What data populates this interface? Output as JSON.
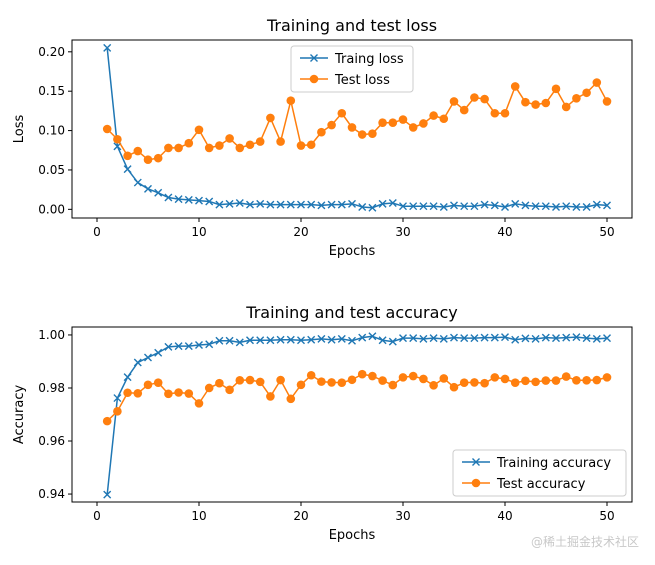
{
  "chart_data": [
    {
      "type": "line",
      "title": "Training and test loss",
      "xlabel": "Epochs",
      "ylabel": "Loss",
      "xlim": [
        -2.45,
        52.45
      ],
      "ylim": [
        -0.011,
        0.215
      ],
      "xticks": [
        "0",
        "10",
        "20",
        "30",
        "40",
        "50"
      ],
      "xtick_values": [
        0,
        10,
        20,
        30,
        40,
        50
      ],
      "yticks": [
        "0.00",
        "0.05",
        "0.10",
        "0.15",
        "0.20"
      ],
      "ytick_values": [
        0,
        0.05,
        0.1,
        0.15,
        0.2
      ],
      "grid": false,
      "legend": "upper-center",
      "x": [
        1,
        2,
        3,
        4,
        5,
        6,
        7,
        8,
        9,
        10,
        11,
        12,
        13,
        14,
        15,
        16,
        17,
        18,
        19,
        20,
        21,
        22,
        23,
        24,
        25,
        26,
        27,
        28,
        29,
        30,
        31,
        32,
        33,
        34,
        35,
        36,
        37,
        38,
        39,
        40,
        41,
        42,
        43,
        44,
        45,
        46,
        47,
        48,
        49,
        50
      ],
      "series": [
        {
          "name": "Traing loss",
          "color": "#1f77b4",
          "marker": "x",
          "values": [
            0.205,
            0.08,
            0.051,
            0.034,
            0.026,
            0.021,
            0.015,
            0.013,
            0.012,
            0.011,
            0.01,
            0.006,
            0.007,
            0.008,
            0.006,
            0.007,
            0.006,
            0.006,
            0.006,
            0.006,
            0.006,
            0.005,
            0.006,
            0.006,
            0.007,
            0.003,
            0.002,
            0.007,
            0.008,
            0.004,
            0.004,
            0.004,
            0.004,
            0.003,
            0.005,
            0.004,
            0.004,
            0.006,
            0.005,
            0.003,
            0.007,
            0.005,
            0.004,
            0.004,
            0.003,
            0.004,
            0.003,
            0.003,
            0.006,
            0.005
          ]
        },
        {
          "name": "Test loss",
          "color": "#ff7f0e",
          "marker": "o",
          "values": [
            0.102,
            0.089,
            0.068,
            0.074,
            0.063,
            0.065,
            0.078,
            0.078,
            0.084,
            0.101,
            0.078,
            0.081,
            0.09,
            0.078,
            0.082,
            0.086,
            0.116,
            0.086,
            0.138,
            0.081,
            0.082,
            0.098,
            0.107,
            0.122,
            0.104,
            0.095,
            0.096,
            0.11,
            0.11,
            0.114,
            0.104,
            0.109,
            0.119,
            0.115,
            0.137,
            0.126,
            0.142,
            0.14,
            0.122,
            0.122,
            0.156,
            0.136,
            0.133,
            0.135,
            0.153,
            0.13,
            0.141,
            0.148,
            0.161,
            0.137
          ]
        }
      ]
    },
    {
      "type": "line",
      "title": "Training and test accuracy",
      "xlabel": "Epochs",
      "ylabel": "Accuracy",
      "xlim": [
        -2.45,
        52.45
      ],
      "ylim": [
        0.937,
        1.003
      ],
      "xticks": [
        "0",
        "10",
        "20",
        "30",
        "40",
        "50"
      ],
      "xtick_values": [
        0,
        10,
        20,
        30,
        40,
        50
      ],
      "yticks": [
        "0.94",
        "0.96",
        "0.98",
        "1.00"
      ],
      "ytick_values": [
        0.94,
        0.96,
        0.98,
        1.0
      ],
      "grid": false,
      "legend": "lower-right",
      "x": [
        1,
        2,
        3,
        4,
        5,
        6,
        7,
        8,
        9,
        10,
        11,
        12,
        13,
        14,
        15,
        16,
        17,
        18,
        19,
        20,
        21,
        22,
        23,
        24,
        25,
        26,
        27,
        28,
        29,
        30,
        31,
        32,
        33,
        34,
        35,
        36,
        37,
        38,
        39,
        40,
        41,
        42,
        43,
        44,
        45,
        46,
        47,
        48,
        49,
        50
      ],
      "series": [
        {
          "name": "Training accuracy",
          "color": "#1f77b4",
          "marker": "x",
          "values": [
            0.9398,
            0.9762,
            0.9841,
            0.9896,
            0.9915,
            0.9933,
            0.9955,
            0.9958,
            0.9958,
            0.9962,
            0.9965,
            0.9978,
            0.9978,
            0.9972,
            0.998,
            0.998,
            0.998,
            0.9982,
            0.9982,
            0.998,
            0.9982,
            0.9985,
            0.9982,
            0.9985,
            0.9978,
            0.999,
            0.9995,
            0.998,
            0.9975,
            0.9988,
            0.9988,
            0.9985,
            0.9988,
            0.9985,
            0.999,
            0.9988,
            0.9988,
            0.999,
            0.999,
            0.9992,
            0.9982,
            0.9987,
            0.9985,
            0.999,
            0.9988,
            0.999,
            0.9992,
            0.9988,
            0.9985,
            0.9988
          ]
        },
        {
          "name": "Test accuracy",
          "color": "#ff7f0e",
          "marker": "o",
          "values": [
            0.9675,
            0.9712,
            0.9782,
            0.978,
            0.9812,
            0.982,
            0.9778,
            0.9783,
            0.9779,
            0.9742,
            0.98,
            0.9818,
            0.9793,
            0.9829,
            0.983,
            0.9823,
            0.9768,
            0.983,
            0.9759,
            0.9812,
            0.9848,
            0.9824,
            0.9821,
            0.982,
            0.9831,
            0.9852,
            0.9845,
            0.9828,
            0.9811,
            0.984,
            0.9845,
            0.9834,
            0.981,
            0.9836,
            0.9803,
            0.982,
            0.9821,
            0.9818,
            0.984,
            0.9834,
            0.982,
            0.9827,
            0.9823,
            0.9828,
            0.9828,
            0.9843,
            0.9829,
            0.9829,
            0.983,
            0.984
          ]
        }
      ]
    }
  ],
  "watermark": "@稀土掘金技术社区"
}
